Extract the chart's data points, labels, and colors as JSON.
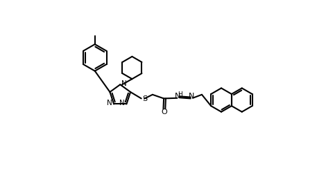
{
  "background_color": "#ffffff",
  "line_color": "#000000",
  "line_width": 1.5,
  "figsize": [
    4.7,
    2.82
  ],
  "dpi": 100,
  "xlim": [
    0,
    9.4
  ],
  "ylim": [
    1.5,
    10.5
  ]
}
